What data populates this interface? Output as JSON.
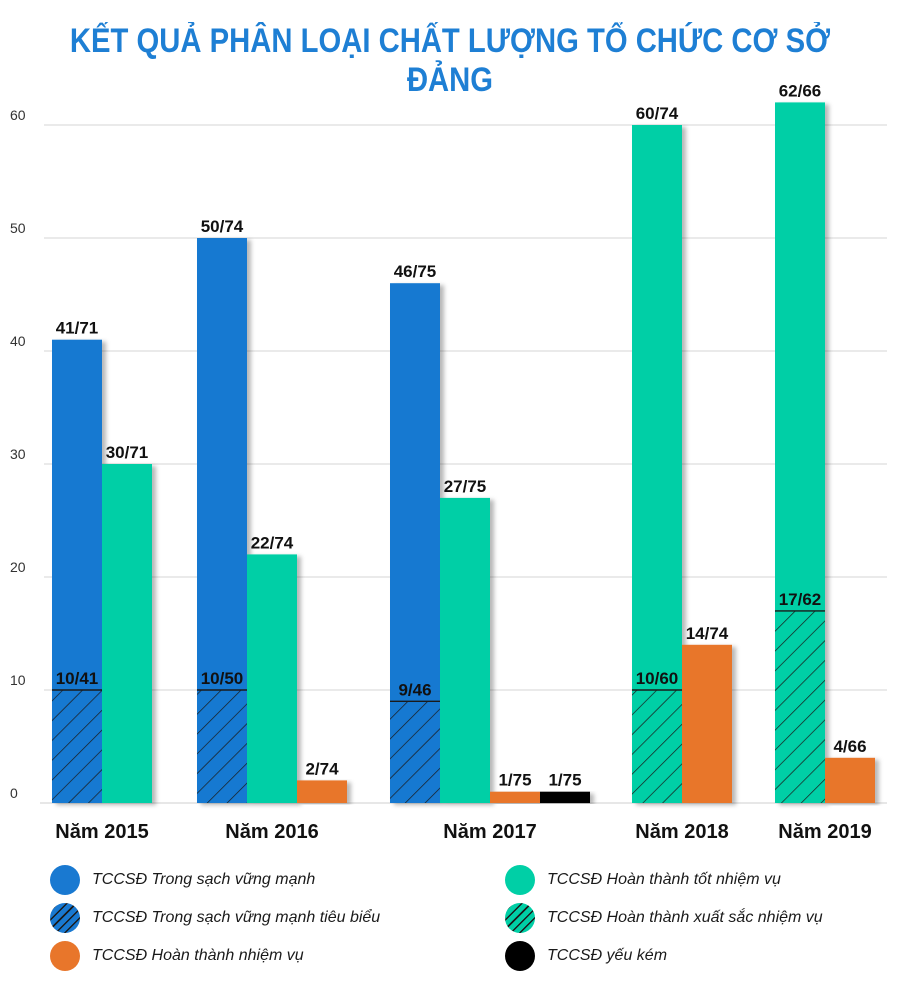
{
  "title": "KẾT QUẢ PHÂN LOẠI CHẤT LƯỢNG TỔ CHỨC CƠ SỞ ĐẢNG",
  "colors": {
    "blue": "#1979d1",
    "teal": "#00cfa6",
    "orange": "#e8762b",
    "black": "#000000",
    "title": "#1e7fd4",
    "grid": "#d6d6d6"
  },
  "legend": [
    {
      "label": "TCCSĐ Trong sạch vững mạnh",
      "color": "#1979d1",
      "hatched": false
    },
    {
      "label": "TCCSĐ Hoàn thành tốt nhiệm vụ",
      "color": "#00cfa6",
      "hatched": false
    },
    {
      "label": "TCCSĐ Trong sạch vững mạnh tiêu biểu",
      "color": "#1979d1",
      "hatched": true
    },
    {
      "label": "TCCSĐ Hoàn thành xuất sắc nhiệm vụ",
      "color": "#00cfa6",
      "hatched": true
    },
    {
      "label": "TCCSĐ Hoàn thành nhiệm vụ",
      "color": "#e8762b",
      "hatched": false
    },
    {
      "label": "TCCSĐ yếu kém",
      "color": "#000000",
      "hatched": false
    }
  ],
  "chart_data": {
    "type": "bar",
    "ylim": [
      0,
      60
    ],
    "yticks": [
      0,
      10,
      20,
      30,
      40,
      50,
      60
    ],
    "grid": true,
    "legend_position": "bottom",
    "categories": [
      "Năm 2015",
      "Năm 2016",
      "Năm 2017",
      "Năm 2018",
      "Năm 2019"
    ],
    "bars": [
      {
        "category": "Năm 2015",
        "series": "TCCSĐ Trong sạch vững mạnh",
        "value": 41,
        "label": "41/71",
        "color": "#1979d1",
        "sub_value": 10,
        "sub_label": "10/41"
      },
      {
        "category": "Năm 2015",
        "series": "TCCSĐ Hoàn thành tốt nhiệm vụ",
        "value": 30,
        "label": "30/71",
        "color": "#00cfa6"
      },
      {
        "category": "Năm 2016",
        "series": "TCCSĐ Trong sạch vững mạnh",
        "value": 50,
        "label": "50/74",
        "color": "#1979d1",
        "sub_value": 10,
        "sub_label": "10/50"
      },
      {
        "category": "Năm 2016",
        "series": "TCCSĐ Hoàn thành tốt nhiệm vụ",
        "value": 22,
        "label": "22/74",
        "color": "#00cfa6"
      },
      {
        "category": "Năm 2016",
        "series": "TCCSĐ Hoàn thành nhiệm vụ",
        "value": 2,
        "label": "2/74",
        "color": "#e8762b"
      },
      {
        "category": "Năm 2017",
        "series": "TCCSĐ Trong sạch vững mạnh",
        "value": 46,
        "label": "46/75",
        "color": "#1979d1",
        "sub_value": 9,
        "sub_label": "9/46"
      },
      {
        "category": "Năm 2017",
        "series": "TCCSĐ Hoàn thành tốt nhiệm vụ",
        "value": 27,
        "label": "27/75",
        "color": "#00cfa6"
      },
      {
        "category": "Năm 2017",
        "series": "TCCSĐ Hoàn thành nhiệm vụ",
        "value": 1,
        "label": "1/75",
        "color": "#e8762b"
      },
      {
        "category": "Năm 2017",
        "series": "TCCSĐ yếu kém",
        "value": 1,
        "label": "1/75",
        "color": "#000000"
      },
      {
        "category": "Năm 2018",
        "series": "TCCSĐ Hoàn thành tốt nhiệm vụ",
        "value": 60,
        "label": "60/74",
        "color": "#00cfa6",
        "sub_value": 10,
        "sub_label": "10/60"
      },
      {
        "category": "Năm 2018",
        "series": "TCCSĐ Hoàn thành nhiệm vụ",
        "value": 14,
        "label": "14/74",
        "color": "#e8762b"
      },
      {
        "category": "Năm 2019",
        "series": "TCCSĐ Hoàn thành tốt nhiệm vụ",
        "value": 62,
        "label": "62/66",
        "color": "#00cfa6",
        "sub_value": 17,
        "sub_label": "17/62"
      },
      {
        "category": "Năm 2019",
        "series": "TCCSĐ Hoàn thành nhiệm vụ",
        "value": 4,
        "label": "4/66",
        "color": "#e8762b"
      }
    ]
  }
}
